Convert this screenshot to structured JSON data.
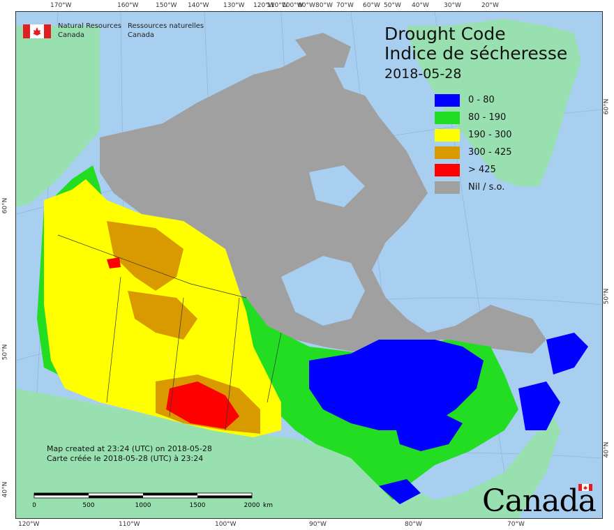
{
  "agency": {
    "en_line1": "Natural Resources",
    "en_line2": "Canada",
    "fr_line1": "Ressources naturelles",
    "fr_line2": "Canada"
  },
  "title": {
    "en": "Drought Code",
    "fr": "Indice de sécheresse",
    "date": "2018-05-28"
  },
  "legend": [
    {
      "label": "0 - 80",
      "color": "#0000ff"
    },
    {
      "label": "80 - 190",
      "color": "#22dd22"
    },
    {
      "label": "190 - 300",
      "color": "#ffff00"
    },
    {
      "label": "300 - 425",
      "color": "#d99a00"
    },
    {
      "label": "> 425",
      "color": "#ff0000"
    },
    {
      "label": "Nil / s.o.",
      "color": "#a0a0a0"
    }
  ],
  "credit": {
    "en": "Map created at 23:24 (UTC) on 2018-05-28",
    "fr": "Carte créée le 2018-05-28 (UTC) à 23:24"
  },
  "scale": {
    "labels": [
      "0",
      "500",
      "1000",
      "1500",
      "2000"
    ],
    "unit": "km"
  },
  "top_ticks": [
    "170°W",
    "160°W",
    "150°W",
    "140°W",
    "130°W",
    "120°W",
    "110°W",
    "100°W",
    "90°W",
    "80°W",
    "70°W",
    "60°W",
    "50°W",
    "40°W",
    "30°W",
    "20°W"
  ],
  "bottom_ticks": [
    "120°W",
    "110°W",
    "100°W",
    "90°W",
    "80°W",
    "70°W"
  ],
  "left_ticks": [
    "60°N",
    "50°N",
    "40°N"
  ],
  "right_ticks": [
    "60°N",
    "50°N",
    "40°N"
  ],
  "wordmark": "Canada",
  "colors": {
    "water": "#a9cff0",
    "foreign_land": "#98e0b0",
    "nil": "#a0a0a0"
  }
}
